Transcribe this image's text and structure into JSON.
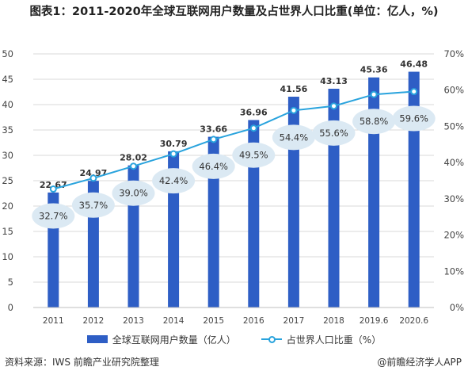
{
  "title": "图表1：2011-2020年全球互联网用户数量及占世界人口比重(单位：亿人，%)",
  "colors": {
    "bar": "#2e5ec5",
    "line": "#29a3dd",
    "bubble": "#dbe9f3",
    "grid": "#d9d9d9",
    "axis_text": "#444444"
  },
  "chart_data": {
    "type": "bar+line",
    "categories": [
      "2011",
      "2012",
      "2013",
      "2014",
      "2015",
      "2016",
      "2017",
      "2018",
      "2019.6",
      "2020.6"
    ],
    "series": [
      {
        "name": "全球互联网用户数量（亿人）",
        "type": "bar",
        "axis": "left",
        "values": [
          22.67,
          24.97,
          28.02,
          30.79,
          33.66,
          36.96,
          41.56,
          43.13,
          45.36,
          46.48
        ],
        "labels": [
          "22.67",
          "24.97",
          "28.02",
          "30.79",
          "33.66",
          "36.96",
          "41.56",
          "43.13",
          "45.36",
          "46.48"
        ]
      },
      {
        "name": "占世界人口比重（%）",
        "type": "line",
        "axis": "right",
        "values": [
          32.7,
          35.7,
          39.0,
          42.4,
          46.4,
          49.5,
          54.4,
          55.6,
          58.8,
          59.6
        ],
        "labels": [
          "32.7%",
          "35.7%",
          "39.0%",
          "42.4%",
          "46.4%",
          "49.5%",
          "54.4%",
          "55.6%",
          "58.8%",
          "59.6%"
        ]
      }
    ],
    "y_left": {
      "lim": [
        0,
        50
      ],
      "ticks": [
        "0",
        "5",
        "10",
        "15",
        "20",
        "25",
        "30",
        "35",
        "40",
        "45",
        "50"
      ]
    },
    "y_right": {
      "lim": [
        0,
        70
      ],
      "ticks": [
        "0%",
        "10%",
        "20%",
        "30%",
        "40%",
        "50%",
        "60%",
        "70%"
      ]
    },
    "grid": true,
    "legend_position": "bottom"
  },
  "legend": {
    "bar_label": "全球互联网用户数量（亿人）",
    "line_label": "占世界人口比重（%）"
  },
  "footer": {
    "source": "资料来源：IWS 前瞻产业研究院整理",
    "brand": "@前瞻经济学人APP"
  }
}
